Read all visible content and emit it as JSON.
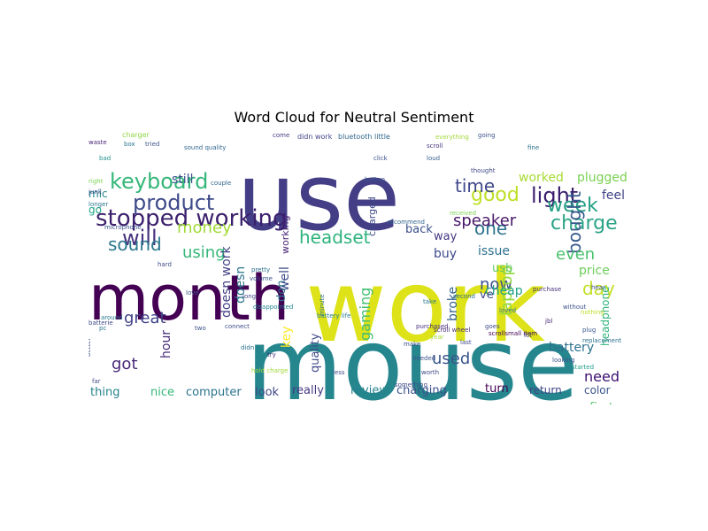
{
  "chart_data": {
    "type": "wordcloud",
    "title": "Word Cloud for Neutral Sentiment",
    "background": "#ffffff",
    "words": [
      {
        "text": "mouse",
        "size": 112,
        "color": "#26868e"
      },
      {
        "text": "work",
        "size": 112,
        "color": "#dde318"
      },
      {
        "text": "use",
        "size": 104,
        "color": "#433e85"
      },
      {
        "text": "month",
        "size": 70,
        "color": "#440154"
      },
      {
        "text": "stopped working",
        "size": 26,
        "color": "#3b1f6c"
      },
      {
        "text": "keyboard",
        "size": 24,
        "color": "#35b779"
      },
      {
        "text": "product",
        "size": 24,
        "color": "#3e4a89"
      },
      {
        "text": "will",
        "size": 24,
        "color": "#46327e"
      },
      {
        "text": "light",
        "size": 24,
        "color": "#3a1d6d"
      },
      {
        "text": "good",
        "size": 22,
        "color": "#bddf26"
      },
      {
        "text": "charge",
        "size": 22,
        "color": "#2aa386"
      },
      {
        "text": "week",
        "size": 22,
        "color": "#25a085"
      },
      {
        "text": "time",
        "size": 20,
        "color": "#3f4889"
      },
      {
        "text": "one",
        "size": 20,
        "color": "#2c728e"
      },
      {
        "text": "sound",
        "size": 20,
        "color": "#2a788e"
      },
      {
        "text": "headset",
        "size": 20,
        "color": "#2eb37c"
      },
      {
        "text": "day",
        "size": 20,
        "color": "#c2df23"
      },
      {
        "text": "bought",
        "size": 20,
        "color": "#38598c"
      },
      {
        "text": "money",
        "size": 18,
        "color": "#a2da37"
      },
      {
        "text": "using",
        "size": 18,
        "color": "#35b779"
      },
      {
        "text": "even",
        "size": 18,
        "color": "#4ac16d"
      },
      {
        "text": "now",
        "size": 18,
        "color": "#3b528b"
      },
      {
        "text": "speaker",
        "size": 18,
        "color": "#481769"
      },
      {
        "text": "great",
        "size": 18,
        "color": "#404387"
      },
      {
        "text": "laptop",
        "size": 18,
        "color": "#94d840"
      },
      {
        "text": "got",
        "size": 18,
        "color": "#482878"
      },
      {
        "text": "used",
        "size": 18,
        "color": "#3a548c"
      },
      {
        "text": "gaming",
        "size": 16,
        "color": "#42be71"
      },
      {
        "text": "worked",
        "size": 14,
        "color": "#a8db34"
      },
      {
        "text": "plugged",
        "size": 14,
        "color": "#7ad151"
      },
      {
        "text": "still",
        "size": 14,
        "color": "#3b528b"
      },
      {
        "text": "feel",
        "size": 14,
        "color": "#414487"
      },
      {
        "text": "doesn work",
        "size": 14,
        "color": "#424086"
      },
      {
        "text": "doesn",
        "size": 14,
        "color": "#2b748e"
      },
      {
        "text": "price",
        "size": 14,
        "color": "#6cce59"
      },
      {
        "text": "issue",
        "size": 14,
        "color": "#2d708e"
      },
      {
        "text": "cheap",
        "size": 14,
        "color": "#1fa187"
      },
      {
        "text": "buy",
        "size": 14,
        "color": "#3e4a89"
      },
      {
        "text": "broke",
        "size": 14,
        "color": "#33638d"
      },
      {
        "text": "need",
        "size": 16,
        "color": "#3b0f70"
      },
      {
        "text": "battery",
        "size": 14,
        "color": "#2c728e"
      },
      {
        "text": "color",
        "size": 12,
        "color": "#3a548c"
      },
      {
        "text": "first",
        "size": 14,
        "color": "#56c667"
      },
      {
        "text": "return",
        "size": 12,
        "color": "#414487"
      },
      {
        "text": "turn",
        "size": 13,
        "color": "#440154"
      },
      {
        "text": "charging",
        "size": 13,
        "color": "#3b528b"
      },
      {
        "text": "review",
        "size": 13,
        "color": "#26828e"
      },
      {
        "text": "really",
        "size": 13,
        "color": "#443983"
      },
      {
        "text": "look",
        "size": 13,
        "color": "#3f4788"
      },
      {
        "text": "computer",
        "size": 13,
        "color": "#2c728e"
      },
      {
        "text": "nice",
        "size": 13,
        "color": "#35b779"
      },
      {
        "text": "thing",
        "size": 13,
        "color": "#26828e"
      },
      {
        "text": "hour",
        "size": 14,
        "color": "#472d7b"
      },
      {
        "text": "key",
        "size": 14,
        "color": "#fde725"
      },
      {
        "text": "well",
        "size": 14,
        "color": "#3e4a89"
      },
      {
        "text": "don",
        "size": 13,
        "color": "#2d708e"
      },
      {
        "text": "quality",
        "size": 13,
        "color": "#3e4a89"
      },
      {
        "text": "back",
        "size": 13,
        "color": "#3b528b"
      },
      {
        "text": "way",
        "size": 13,
        "color": "#453781"
      },
      {
        "text": "ve",
        "size": 13,
        "color": "#3e4a89"
      },
      {
        "text": "usb",
        "size": 13,
        "color": "#5ec962"
      },
      {
        "text": "headphone",
        "size": 12,
        "color": "#2eb37c"
      },
      {
        "text": "mic",
        "size": 12,
        "color": "#24878e"
      },
      {
        "text": "go",
        "size": 12,
        "color": "#20a486"
      },
      {
        "text": "working",
        "size": 11,
        "color": "#482475"
      },
      {
        "text": "charged",
        "size": 11,
        "color": "#3e4989"
      },
      {
        "text": "bluetooth little",
        "size": 8,
        "color": "#31688e"
      },
      {
        "text": "didn work",
        "size": 8,
        "color": "#404588"
      },
      {
        "text": "charger",
        "size": 8,
        "color": "#8fd744"
      },
      {
        "text": "waste",
        "size": 7,
        "color": "#482878"
      },
      {
        "text": "box",
        "size": 7,
        "color": "#2a788e"
      },
      {
        "text": "tried",
        "size": 7,
        "color": "#3b528b"
      },
      {
        "text": "sound quality",
        "size": 7,
        "color": "#31688e"
      },
      {
        "text": "right",
        "size": 7,
        "color": "#7ad151"
      },
      {
        "text": "junk",
        "size": 7,
        "color": "#3e4a89"
      },
      {
        "text": "bad",
        "size": 7,
        "color": "#21918c"
      },
      {
        "text": "longer",
        "size": 7,
        "color": "#2a788e"
      },
      {
        "text": "couple",
        "size": 7,
        "color": "#31688e"
      },
      {
        "text": "come",
        "size": 7,
        "color": "#443983"
      },
      {
        "text": "click",
        "size": 7,
        "color": "#3b528b"
      },
      {
        "text": "button",
        "size": 7,
        "color": "#39568c"
      },
      {
        "text": "pretty",
        "size": 7,
        "color": "#2c728e"
      },
      {
        "text": "hard",
        "size": 7,
        "color": "#3e4a89"
      },
      {
        "text": "loud",
        "size": 7,
        "color": "#35608d"
      },
      {
        "text": "scroll",
        "size": 7,
        "color": "#46337f"
      },
      {
        "text": "scroll wheel",
        "size": 7,
        "color": "#472d7b"
      },
      {
        "text": "second",
        "size": 7,
        "color": "#2c728e"
      },
      {
        "text": "received",
        "size": 7,
        "color": "#7ad151"
      },
      {
        "text": "recommend",
        "size": 7,
        "color": "#33638d"
      },
      {
        "text": "goes",
        "size": 7,
        "color": "#3e4989"
      },
      {
        "text": "purchase",
        "size": 7,
        "color": "#46327e"
      },
      {
        "text": "without",
        "size": 7,
        "color": "#3b528b"
      },
      {
        "text": "nothing",
        "size": 7,
        "color": "#bddf26"
      },
      {
        "text": "scrollsmall item",
        "size": 7,
        "color": "#440154"
      },
      {
        "text": "loved",
        "size": 7,
        "color": "#2c728e"
      },
      {
        "text": "long",
        "size": 7,
        "color": "#414487"
      },
      {
        "text": "volume",
        "size": 7,
        "color": "#3b528b"
      },
      {
        "text": "disappointed",
        "size": 7,
        "color": "#25848e"
      },
      {
        "text": "battery life",
        "size": 7,
        "color": "#277f8e"
      },
      {
        "text": "batterie",
        "size": 7,
        "color": "#3e4a89"
      },
      {
        "text": "love",
        "size": 7,
        "color": "#3b528b"
      },
      {
        "text": "around",
        "size": 7,
        "color": "#2a788e"
      },
      {
        "text": "pc",
        "size": 7,
        "color": "#2c728e"
      },
      {
        "text": "two",
        "size": 7,
        "color": "#3b528b"
      },
      {
        "text": "purchased",
        "size": 7,
        "color": "#472d7b"
      },
      {
        "text": "year",
        "size": 7,
        "color": "#a5db36"
      },
      {
        "text": "last",
        "size": 7,
        "color": "#3e4a89"
      },
      {
        "text": "lot",
        "size": 7,
        "color": "#404387"
      },
      {
        "text": "jbl",
        "size": 7,
        "color": "#482878"
      },
      {
        "text": "plug",
        "size": 7,
        "color": "#39568c"
      },
      {
        "text": "replacement",
        "size": 7,
        "color": "#2c728e"
      },
      {
        "text": "started",
        "size": 7,
        "color": "#1f9e89"
      },
      {
        "text": "looking",
        "size": 7,
        "color": "#3b528b"
      },
      {
        "text": "worth",
        "size": 7,
        "color": "#3e4a89"
      },
      {
        "text": "needed",
        "size": 7,
        "color": "#3b528b"
      },
      {
        "text": "less",
        "size": 7,
        "color": "#3e4a89"
      },
      {
        "text": "try",
        "size": 7,
        "color": "#472d7b"
      },
      {
        "text": "didn",
        "size": 7,
        "color": "#2c728e"
      },
      {
        "text": "hold charge",
        "size": 7,
        "color": "#a0da39"
      },
      {
        "text": "better",
        "size": 7,
        "color": "#3b528b"
      },
      {
        "text": "far",
        "size": 7,
        "color": "#3e4a89"
      },
      {
        "text": "make",
        "size": 7,
        "color": "#3b528b"
      },
      {
        "text": "take",
        "size": 7,
        "color": "#2a788e"
      },
      {
        "text": "something",
        "size": 7,
        "color": "#3e4989"
      },
      {
        "text": "fine",
        "size": 7,
        "color": "#2c728e"
      },
      {
        "text": "hear",
        "size": 7,
        "color": "#3b528b"
      },
      {
        "text": "thought",
        "size": 7,
        "color": "#3e4a89"
      },
      {
        "text": "going",
        "size": 7,
        "color": "#3b528b"
      },
      {
        "text": "everything",
        "size": 7,
        "color": "#a2da37"
      },
      {
        "text": "connect",
        "size": 7,
        "color": "#3e4a89"
      },
      {
        "text": "minute",
        "size": 7,
        "color": "#2c728e"
      },
      {
        "text": "microphone",
        "size": 7,
        "color": "#3b528b"
      }
    ]
  }
}
